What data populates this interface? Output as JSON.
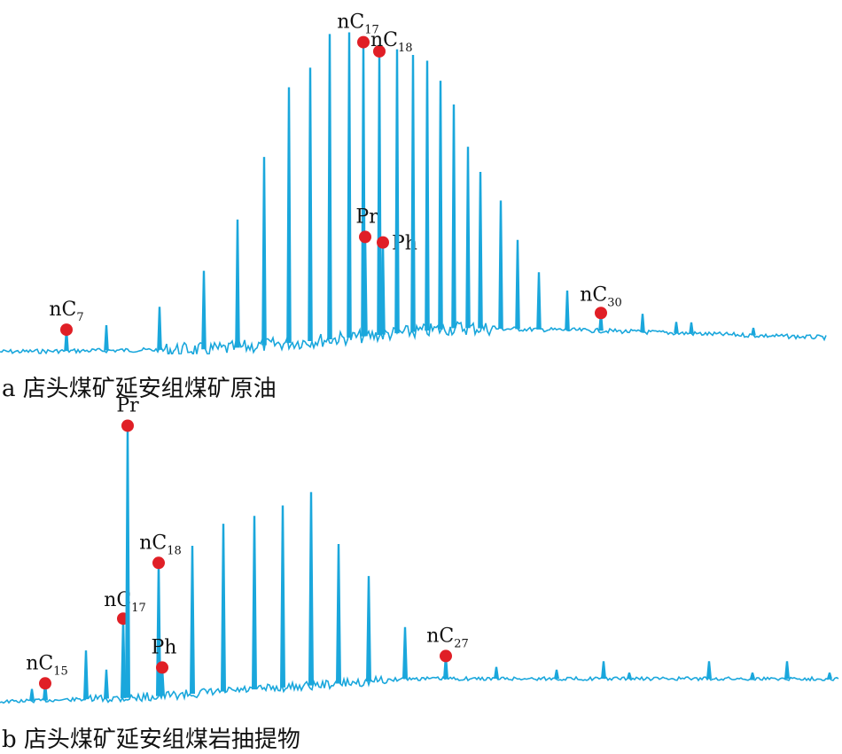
{
  "colors": {
    "trace": "#1aa7dc",
    "marker": "#e01f26",
    "text": "#111111"
  },
  "chart_data": [
    {
      "type": "line",
      "title": "a 店头煤矿延安组煤矿原油",
      "xlabel": "",
      "ylabel": "",
      "grid": false,
      "peaks": [
        {
          "rt": 75,
          "h": 0.06,
          "label": "nC",
          "sub": "7"
        },
        {
          "rt": 120,
          "h": 0.07
        },
        {
          "rt": 180,
          "h": 0.12
        },
        {
          "rt": 230,
          "h": 0.22
        },
        {
          "rt": 268,
          "h": 0.36
        },
        {
          "rt": 298,
          "h": 0.53
        },
        {
          "rt": 326,
          "h": 0.72
        },
        {
          "rt": 350,
          "h": 0.77
        },
        {
          "rt": 372,
          "h": 0.86
        },
        {
          "rt": 394,
          "h": 0.86
        },
        {
          "rt": 410,
          "h": 0.83,
          "label": "nC",
          "sub": "17"
        },
        {
          "rt": 412,
          "h": 0.28,
          "label": "Pr"
        },
        {
          "rt": 428,
          "h": 0.8,
          "label": "nC",
          "sub": "18"
        },
        {
          "rt": 432,
          "h": 0.26,
          "label": "Ph"
        },
        {
          "rt": 448,
          "h": 0.8
        },
        {
          "rt": 466,
          "h": 0.78
        },
        {
          "rt": 482,
          "h": 0.76
        },
        {
          "rt": 497,
          "h": 0.7
        },
        {
          "rt": 512,
          "h": 0.63
        },
        {
          "rt": 528,
          "h": 0.51
        },
        {
          "rt": 542,
          "h": 0.44
        },
        {
          "rt": 565,
          "h": 0.36
        },
        {
          "rt": 584,
          "h": 0.25
        },
        {
          "rt": 608,
          "h": 0.16
        },
        {
          "rt": 640,
          "h": 0.11
        },
        {
          "rt": 678,
          "h": 0.05,
          "label": "nC",
          "sub": "30"
        },
        {
          "rt": 725,
          "h": 0.05
        },
        {
          "rt": 763,
          "h": 0.03
        },
        {
          "rt": 780,
          "h": 0.03
        },
        {
          "rt": 850,
          "h": 0.02
        }
      ]
    },
    {
      "type": "line",
      "title": "b 店头煤矿延安组煤岩抽提物",
      "xlabel": "",
      "ylabel": "",
      "grid": false,
      "peaks": [
        {
          "rt": 36,
          "h": 0.04
        },
        {
          "rt": 51,
          "h": 0.06,
          "label": "nC",
          "sub": "15"
        },
        {
          "rt": 97,
          "h": 0.17
        },
        {
          "rt": 120,
          "h": 0.1
        },
        {
          "rt": 139,
          "h": 0.28,
          "label": "nC",
          "sub": "17"
        },
        {
          "rt": 144,
          "h": 0.96,
          "label": "Pr"
        },
        {
          "rt": 179,
          "h": 0.47,
          "label": "nC",
          "sub": "18"
        },
        {
          "rt": 183,
          "h": 0.1,
          "label": "Ph"
        },
        {
          "rt": 217,
          "h": 0.52
        },
        {
          "rt": 252,
          "h": 0.59
        },
        {
          "rt": 287,
          "h": 0.61
        },
        {
          "rt": 319,
          "h": 0.64
        },
        {
          "rt": 351,
          "h": 0.68
        },
        {
          "rt": 382,
          "h": 0.49
        },
        {
          "rt": 416,
          "h": 0.37
        },
        {
          "rt": 457,
          "h": 0.18
        },
        {
          "rt": 503,
          "h": 0.08,
          "label": "nC",
          "sub": "27"
        },
        {
          "rt": 560,
          "h": 0.04
        },
        {
          "rt": 628,
          "h": 0.03
        },
        {
          "rt": 681,
          "h": 0.06
        },
        {
          "rt": 710,
          "h": 0.02
        },
        {
          "rt": 800,
          "h": 0.06
        },
        {
          "rt": 849,
          "h": 0.02
        },
        {
          "rt": 888,
          "h": 0.06
        },
        {
          "rt": 936,
          "h": 0.02
        }
      ]
    }
  ]
}
